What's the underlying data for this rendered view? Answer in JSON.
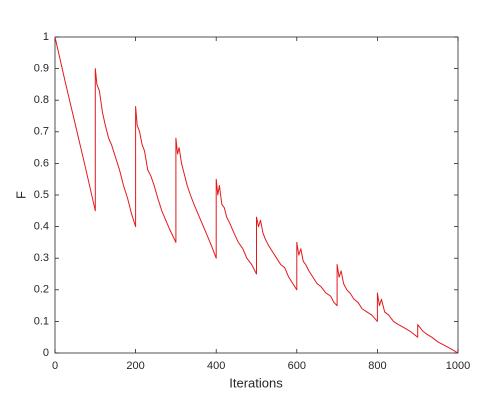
{
  "chart_data": {
    "type": "line",
    "x_label": "Iterations",
    "y_label": "F",
    "color": "#e31a1c",
    "x": [
      0,
      25,
      50,
      75,
      100,
      100,
      104,
      110,
      118,
      125,
      133,
      140,
      150,
      160,
      170,
      180,
      190,
      200,
      200,
      204,
      210,
      216,
      222,
      230,
      238,
      246,
      255,
      265,
      275,
      285,
      300,
      300,
      304,
      308,
      314,
      320,
      328,
      336,
      345,
      355,
      365,
      375,
      388,
      400,
      400,
      404,
      408,
      414,
      420,
      426,
      434,
      444,
      455,
      466,
      476,
      488,
      500,
      500,
      505,
      510,
      516,
      522,
      530,
      540,
      550,
      560,
      570,
      580,
      590,
      600,
      600,
      605,
      610,
      616,
      622,
      630,
      640,
      650,
      660,
      672,
      684,
      692,
      700,
      700,
      705,
      710,
      716,
      724,
      732,
      742,
      752,
      762,
      774,
      786,
      800,
      800,
      805,
      810,
      818,
      828,
      840,
      852,
      866,
      880,
      890,
      900,
      900,
      906,
      912,
      922,
      935,
      950,
      965,
      980,
      1000
    ],
    "values": [
      1,
      0.86,
      0.725,
      0.59,
      0.45,
      0.9,
      0.85,
      0.83,
      0.76,
      0.72,
      0.68,
      0.66,
      0.62,
      0.58,
      0.53,
      0.49,
      0.44,
      0.4,
      0.78,
      0.72,
      0.7,
      0.66,
      0.64,
      0.58,
      0.56,
      0.53,
      0.49,
      0.45,
      0.42,
      0.39,
      0.35,
      0.68,
      0.63,
      0.65,
      0.6,
      0.57,
      0.53,
      0.5,
      0.47,
      0.44,
      0.41,
      0.38,
      0.34,
      0.3,
      0.55,
      0.5,
      0.53,
      0.47,
      0.46,
      0.43,
      0.41,
      0.38,
      0.35,
      0.33,
      0.3,
      0.28,
      0.25,
      0.43,
      0.4,
      0.42,
      0.38,
      0.36,
      0.34,
      0.32,
      0.3,
      0.28,
      0.27,
      0.24,
      0.22,
      0.2,
      0.35,
      0.31,
      0.33,
      0.29,
      0.28,
      0.26,
      0.24,
      0.22,
      0.21,
      0.19,
      0.18,
      0.16,
      0.15,
      0.28,
      0.24,
      0.26,
      0.22,
      0.2,
      0.19,
      0.17,
      0.16,
      0.14,
      0.13,
      0.12,
      0.1,
      0.19,
      0.15,
      0.17,
      0.13,
      0.12,
      0.1,
      0.09,
      0.08,
      0.07,
      0.06,
      0.05,
      0.09,
      0.08,
      0.07,
      0.06,
      0.05,
      0.035,
      0.025,
      0.015,
      0
    ],
    "xlim": [
      0,
      1000
    ],
    "xticks": [
      0,
      200,
      400,
      600,
      800,
      1000
    ],
    "ylim": [
      0,
      1
    ],
    "yticks": [
      0,
      0.1,
      0.2,
      0.3,
      0.4,
      0.5,
      0.6,
      0.7,
      0.8,
      0.9,
      1
    ]
  }
}
